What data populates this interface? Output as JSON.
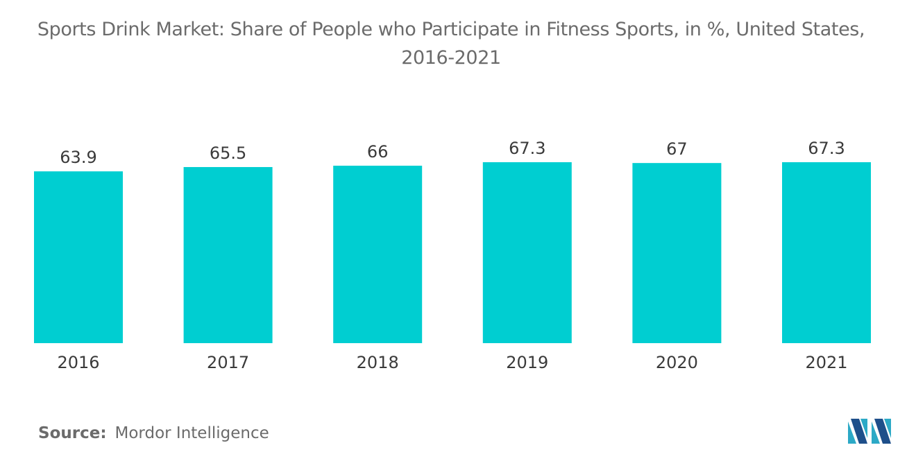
{
  "chart_data": {
    "type": "bar",
    "title_line1": "Sports Drink Market: Share of People who Participate in Fitness Sports, in %, United States,",
    "title_line2": "2016-2021",
    "categories": [
      "2016",
      "2017",
      "2018",
      "2019",
      "2020",
      "2021"
    ],
    "values": [
      63.9,
      65.5,
      66,
      67.3,
      67,
      67.3
    ],
    "value_labels": [
      "63.9",
      "65.5",
      "66",
      "67.3",
      "67",
      "67.3"
    ],
    "ylim": [
      0,
      67.3
    ],
    "grid": false,
    "legend": "none",
    "bar_color": "#00ced1"
  },
  "source": {
    "label": "Source:",
    "text": "Mordor Intelligence"
  },
  "logo": {
    "icon": "mordor-intelligence-logo",
    "colors": [
      "#2ca9c6",
      "#1e4f8a"
    ]
  }
}
